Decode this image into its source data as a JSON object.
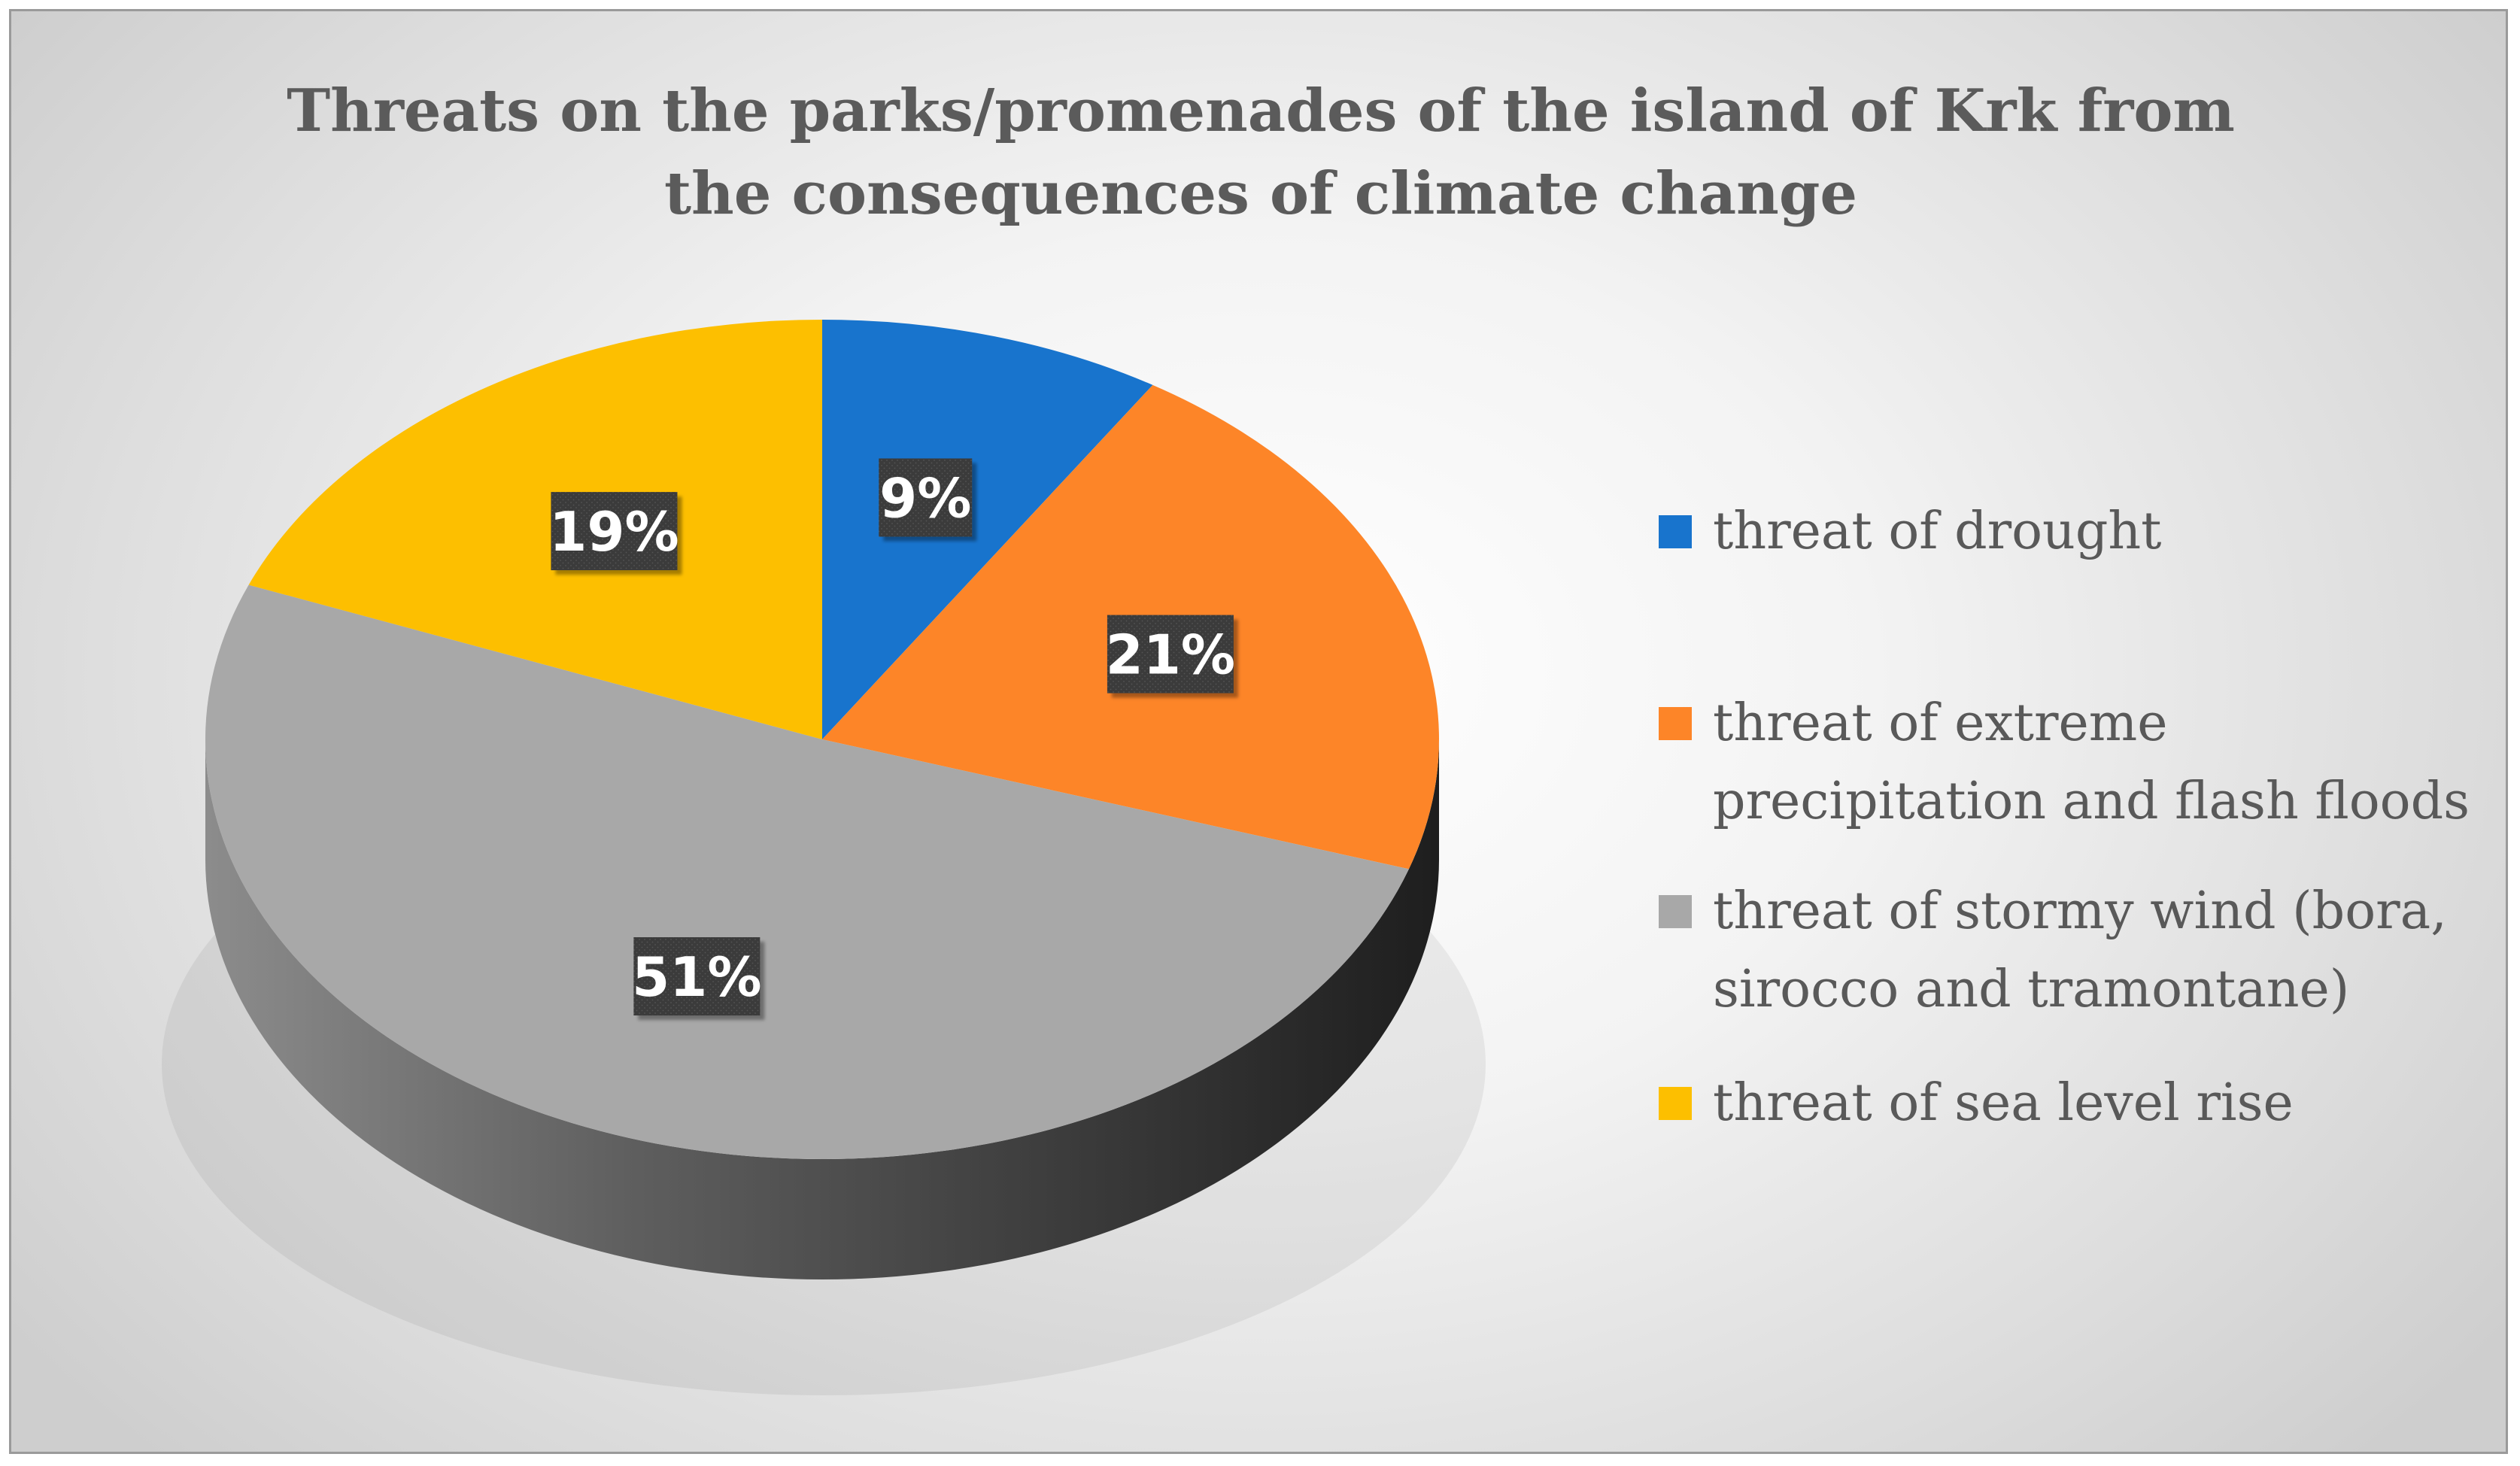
{
  "chart_data": {
    "type": "pie",
    "title": "Threats on the parks/promenades of the island of Krk from the consequences of climate change",
    "categories": [
      "threat of drought",
      "threat of extreme precipitation and flash floods",
      "threat of stormy wind (bora, sirocco and tramontane)",
      "threat of sea level rise"
    ],
    "values": [
      9,
      21,
      51,
      19
    ],
    "labels": [
      "9%",
      "21%",
      "51%",
      "19%"
    ],
    "colors": [
      "#1874cd",
      "#fd8528",
      "#a8a8a8",
      "#fdbf00"
    ],
    "legend_position": "right",
    "style": "3d"
  }
}
